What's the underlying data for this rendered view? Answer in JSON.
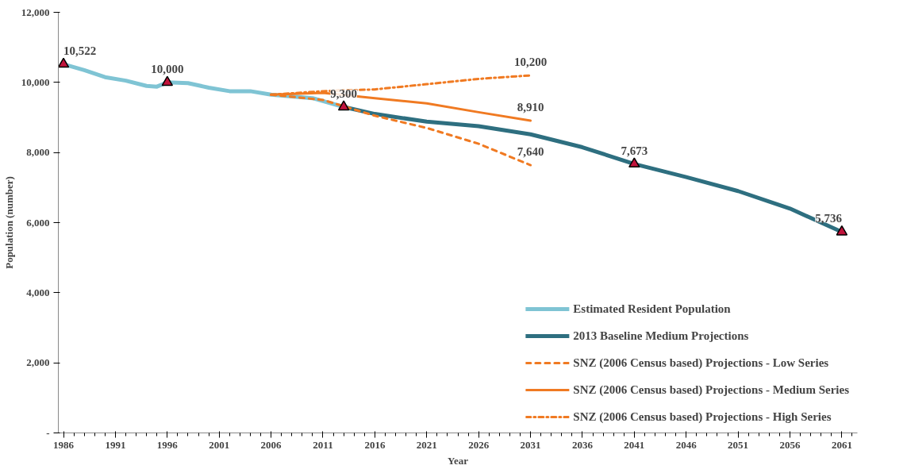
{
  "chart_data": {
    "type": "line",
    "xlabel": "Year",
    "ylabel": "Population (number)",
    "x": [
      1986,
      1988,
      1990,
      1992,
      1994,
      1995,
      1996,
      1998,
      2000,
      2002,
      2004,
      2006,
      2008,
      2010,
      2013
    ],
    "xlim": [
      1985.5,
      2062.5
    ],
    "xticks": [
      1986,
      1991,
      1996,
      2001,
      2006,
      2011,
      2016,
      2021,
      2026,
      2031,
      2036,
      2041,
      2046,
      2051,
      2056,
      2061
    ],
    "ylim": [
      0,
      12000
    ],
    "yticks": [
      {
        "value": 0,
        "label": "-"
      },
      {
        "value": 2000,
        "label": "2,000"
      },
      {
        "value": 4000,
        "label": "4,000"
      },
      {
        "value": 6000,
        "label": "6,000"
      },
      {
        "value": 8000,
        "label": "8,000"
      },
      {
        "value": 10000,
        "label": "10,000"
      },
      {
        "value": 12000,
        "label": "12,000"
      }
    ],
    "grid": false,
    "legend": "bottom right",
    "series": [
      {
        "name": "Estimated Resident Population",
        "color": "#7fc4d4",
        "line_style": "solid",
        "values": [
          10522,
          10350,
          10150,
          10050,
          9900,
          9880,
          10000,
          9980,
          9850,
          9750,
          9750,
          9650,
          9600,
          9550,
          9300
        ]
      },
      {
        "name": "2013 Baseline Medium Projections",
        "color": "#2e6f80",
        "line_style": "solid",
        "x": [
          2013,
          2016,
          2021,
          2026,
          2031,
          2036,
          2041,
          2046,
          2051,
          2056,
          2061
        ],
        "values": [
          9300,
          9100,
          8880,
          8750,
          8520,
          8150,
          7673,
          7300,
          6900,
          6400,
          5736
        ]
      },
      {
        "name": "SNZ (2006 Census based) Projections - Low Series",
        "color": "#f07a22",
        "line_style": "dashed",
        "x": [
          2006,
          2011,
          2016,
          2021,
          2026,
          2031
        ],
        "values": [
          9650,
          9500,
          9050,
          8700,
          8250,
          7640
        ],
        "value_labels": [
          null,
          null,
          null,
          null,
          null,
          "7,640"
        ]
      },
      {
        "name": "SNZ (2006 Census based) Projections - Medium Series",
        "color": "#f07a22",
        "line_style": "solid",
        "x": [
          2006,
          2011,
          2016,
          2021,
          2026,
          2031
        ],
        "values": [
          9650,
          9700,
          9550,
          9400,
          9150,
          8910
        ],
        "value_labels": [
          null,
          null,
          null,
          null,
          null,
          "8,910"
        ]
      },
      {
        "name": "SNZ (2006 Census based) Projections - High Series",
        "color": "#f07a22",
        "line_style": "dashdot",
        "x": [
          2006,
          2011,
          2016,
          2021,
          2026,
          2031
        ],
        "values": [
          9650,
          9750,
          9800,
          9950,
          10100,
          10200
        ],
        "value_labels": [
          null,
          null,
          null,
          null,
          null,
          "10,200"
        ]
      },
      {
        "type": "scatter",
        "marker": "triangle",
        "color": "#c0143c",
        "x": [
          1986,
          1996,
          2013,
          2041,
          2061
        ],
        "values": [
          10522,
          10000,
          9300,
          7673,
          5736
        ],
        "value_labels": [
          "10,522",
          "10,000",
          "9,300",
          "7,673",
          "5,736"
        ]
      }
    ]
  }
}
